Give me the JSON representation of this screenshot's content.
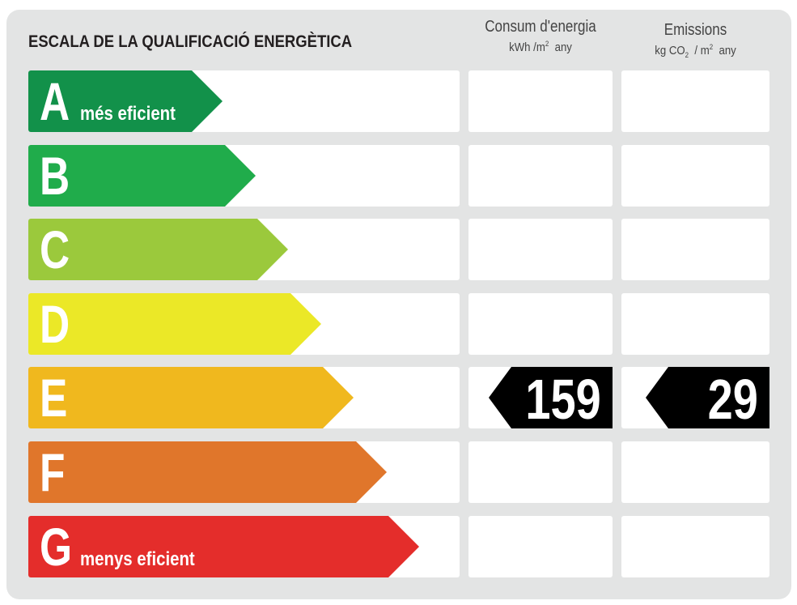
{
  "title": "ESCALA DE LA QUALIFICACIÓ ENERGÈTICA",
  "columns": {
    "energy": {
      "label": "Consum d'energia",
      "unit_prefix": "kWh /m",
      "unit_exp": "2",
      "unit_suffix": "any"
    },
    "emissions": {
      "label": "Emissions",
      "unit_prefix": "kg CO",
      "unit_sub": "2",
      "unit_mid": "/ m",
      "unit_exp": "2",
      "unit_suffix": "any"
    }
  },
  "classes": [
    {
      "letter": "A",
      "caption": "més eficient",
      "color": "#12914a"
    },
    {
      "letter": "B",
      "caption": "",
      "color": "#20ac4b"
    },
    {
      "letter": "C",
      "caption": "",
      "color": "#9bc93c"
    },
    {
      "letter": "D",
      "caption": "",
      "color": "#ebe827"
    },
    {
      "letter": "E",
      "caption": "",
      "color": "#f0b81e"
    },
    {
      "letter": "F",
      "caption": "",
      "color": "#e0762b"
    },
    {
      "letter": "G",
      "caption": "menys eficient",
      "color": "#e42d2b"
    }
  ],
  "rating": {
    "class": "E",
    "energy_value": "159",
    "emissions_value": "29",
    "marker_color": "#000000"
  }
}
